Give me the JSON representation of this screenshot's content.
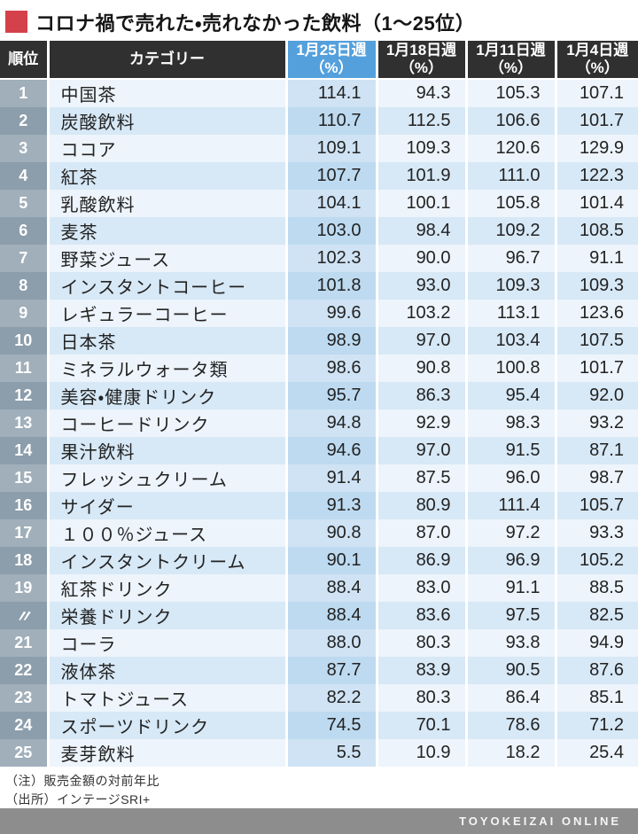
{
  "title": "コロナ禍で売れた・売れなかった飲料（1〜25位）",
  "colors": {
    "accent_red": "#d4414b",
    "header_dark": "#303030",
    "header_highlight_blue": "#54a0dc",
    "row_odd": "#edf4fb",
    "row_even": "#d7e8f6",
    "col1_odd": "#cfe3f4",
    "col1_even": "#bddaf0",
    "rank_odd": "#a0afba",
    "rank_even": "#8c9dab",
    "footer_gray": "#8d8d8d"
  },
  "header": {
    "rank_label": "順位",
    "category_label": "カテゴリー",
    "weeks": [
      {
        "label": "1月25日週",
        "unit": "（%）",
        "highlight": true
      },
      {
        "label": "1月18日週",
        "unit": "（%）",
        "highlight": false
      },
      {
        "label": "1月11日週",
        "unit": "（%）",
        "highlight": false
      },
      {
        "label": "1月4日週",
        "unit": "（%）",
        "highlight": false
      }
    ]
  },
  "chart_data": {
    "type": "table",
    "title": "コロナ禍で売れた・売れなかった飲料（1〜25位）",
    "columns": [
      "順位",
      "カテゴリー",
      "1月25日週（%）",
      "1月18日週（%）",
      "1月11日週（%）",
      "1月4日週（%）"
    ],
    "rows": [
      {
        "rank": "1",
        "category": "中国茶",
        "values": [
          114.1,
          94.3,
          105.3,
          107.1
        ]
      },
      {
        "rank": "2",
        "category": "炭酸飲料",
        "values": [
          110.7,
          112.5,
          106.6,
          101.7
        ]
      },
      {
        "rank": "3",
        "category": "ココア",
        "values": [
          109.1,
          109.3,
          120.6,
          129.9
        ]
      },
      {
        "rank": "4",
        "category": "紅茶",
        "values": [
          107.7,
          101.9,
          111.0,
          122.3
        ]
      },
      {
        "rank": "5",
        "category": "乳酸飲料",
        "values": [
          104.1,
          100.1,
          105.8,
          101.4
        ]
      },
      {
        "rank": "6",
        "category": "麦茶",
        "values": [
          103.0,
          98.4,
          109.2,
          108.5
        ]
      },
      {
        "rank": "7",
        "category": "野菜ジュース",
        "values": [
          102.3,
          90.0,
          96.7,
          91.1
        ]
      },
      {
        "rank": "8",
        "category": "インスタントコーヒー",
        "values": [
          101.8,
          93.0,
          109.3,
          109.3
        ]
      },
      {
        "rank": "9",
        "category": "レギュラーコーヒー",
        "values": [
          99.6,
          103.2,
          113.1,
          123.6
        ]
      },
      {
        "rank": "10",
        "category": "日本茶",
        "values": [
          98.9,
          97.0,
          103.4,
          107.5
        ]
      },
      {
        "rank": "11",
        "category": "ミネラルウォータ類",
        "values": [
          98.6,
          90.8,
          100.8,
          101.7
        ]
      },
      {
        "rank": "12",
        "category": "美容・健康ドリンク",
        "values": [
          95.7,
          86.3,
          95.4,
          92.0
        ]
      },
      {
        "rank": "13",
        "category": "コーヒードリンク",
        "values": [
          94.8,
          92.9,
          98.3,
          93.2
        ]
      },
      {
        "rank": "14",
        "category": "果汁飲料",
        "values": [
          94.6,
          97.0,
          91.5,
          87.1
        ]
      },
      {
        "rank": "15",
        "category": "フレッシュクリーム",
        "values": [
          91.4,
          87.5,
          96.0,
          98.7
        ]
      },
      {
        "rank": "16",
        "category": "サイダー",
        "values": [
          91.3,
          80.9,
          111.4,
          105.7
        ]
      },
      {
        "rank": "17",
        "category": "１００％ジュース",
        "values": [
          90.8,
          87.0,
          97.2,
          93.3
        ]
      },
      {
        "rank": "18",
        "category": "インスタントクリーム",
        "values": [
          90.1,
          86.9,
          96.9,
          105.2
        ]
      },
      {
        "rank": "19",
        "category": "紅茶ドリンク",
        "values": [
          88.4,
          83.0,
          91.1,
          88.5
        ]
      },
      {
        "rank": "〃",
        "category": "栄養ドリンク",
        "values": [
          88.4,
          83.6,
          97.5,
          82.5
        ]
      },
      {
        "rank": "21",
        "category": "コーラ",
        "values": [
          88.0,
          80.3,
          93.8,
          94.9
        ]
      },
      {
        "rank": "22",
        "category": "液体茶",
        "values": [
          87.7,
          83.9,
          90.5,
          87.6
        ]
      },
      {
        "rank": "23",
        "category": "トマトジュース",
        "values": [
          82.2,
          80.3,
          86.4,
          85.1
        ]
      },
      {
        "rank": "24",
        "category": "スポーツドリンク",
        "values": [
          74.5,
          70.1,
          78.6,
          71.2
        ]
      },
      {
        "rank": "25",
        "category": "麦芽飲料",
        "values": [
          5.5,
          10.9,
          18.2,
          25.4
        ]
      }
    ]
  },
  "notes": [
    "（注）販売金額の対前年比",
    "（出所）インテージSRI+"
  ],
  "footer": {
    "brand": "TOYOKEIZAI ONLINE"
  }
}
